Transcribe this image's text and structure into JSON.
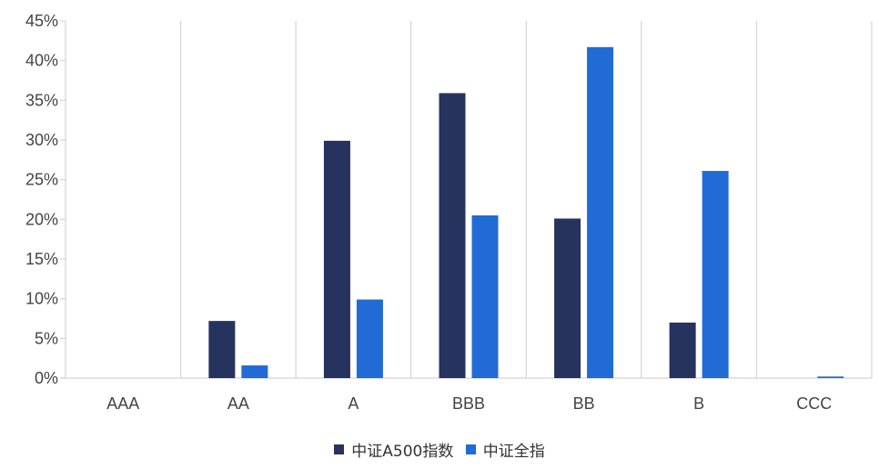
{
  "chart_data": {
    "type": "bar",
    "categories": [
      "AAA",
      "AA",
      "A",
      "BBB",
      "BB",
      "B",
      "CCC"
    ],
    "series": [
      {
        "name": "中证A500指数",
        "color": "#26335e",
        "values": [
          0,
          7.2,
          29.9,
          35.9,
          20.1,
          7.0,
          0
        ]
      },
      {
        "name": "中证全指",
        "color": "#216bd6",
        "values": [
          0,
          1.6,
          9.9,
          20.5,
          41.7,
          26.1,
          0.2
        ]
      }
    ],
    "y_ticks": [
      "0%",
      "5%",
      "10%",
      "15%",
      "20%",
      "25%",
      "30%",
      "35%",
      "40%",
      "45%"
    ],
    "ylim": [
      0,
      45
    ],
    "y_unit": "%",
    "grid": "vertical category separators",
    "legend_position": "bottom-center"
  }
}
